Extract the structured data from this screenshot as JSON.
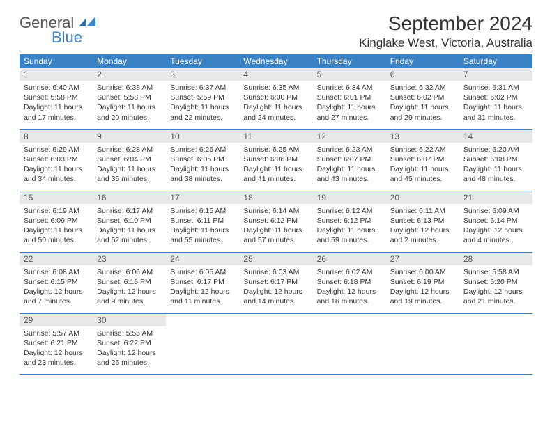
{
  "logo": {
    "text1": "General",
    "text2": "Blue",
    "color_general": "#555555",
    "color_blue": "#3b82c4"
  },
  "header": {
    "month_title": "September 2024",
    "location": "Kinglake West, Victoria, Australia"
  },
  "calendar": {
    "header_bg": "#3b82c4",
    "header_fg": "#ffffff",
    "daynum_bg": "#e8e8e8",
    "border_color": "#3b82c4",
    "body_fontsize": 10.5,
    "daynum_fontsize": 12,
    "header_fontsize": 12,
    "columns": [
      "Sunday",
      "Monday",
      "Tuesday",
      "Wednesday",
      "Thursday",
      "Friday",
      "Saturday"
    ],
    "weeks": [
      [
        {
          "n": "1",
          "sunrise": "Sunrise: 6:40 AM",
          "sunset": "Sunset: 5:58 PM",
          "day1": "Daylight: 11 hours",
          "day2": "and 17 minutes."
        },
        {
          "n": "2",
          "sunrise": "Sunrise: 6:38 AM",
          "sunset": "Sunset: 5:58 PM",
          "day1": "Daylight: 11 hours",
          "day2": "and 20 minutes."
        },
        {
          "n": "3",
          "sunrise": "Sunrise: 6:37 AM",
          "sunset": "Sunset: 5:59 PM",
          "day1": "Daylight: 11 hours",
          "day2": "and 22 minutes."
        },
        {
          "n": "4",
          "sunrise": "Sunrise: 6:35 AM",
          "sunset": "Sunset: 6:00 PM",
          "day1": "Daylight: 11 hours",
          "day2": "and 24 minutes."
        },
        {
          "n": "5",
          "sunrise": "Sunrise: 6:34 AM",
          "sunset": "Sunset: 6:01 PM",
          "day1": "Daylight: 11 hours",
          "day2": "and 27 minutes."
        },
        {
          "n": "6",
          "sunrise": "Sunrise: 6:32 AM",
          "sunset": "Sunset: 6:02 PM",
          "day1": "Daylight: 11 hours",
          "day2": "and 29 minutes."
        },
        {
          "n": "7",
          "sunrise": "Sunrise: 6:31 AM",
          "sunset": "Sunset: 6:02 PM",
          "day1": "Daylight: 11 hours",
          "day2": "and 31 minutes."
        }
      ],
      [
        {
          "n": "8",
          "sunrise": "Sunrise: 6:29 AM",
          "sunset": "Sunset: 6:03 PM",
          "day1": "Daylight: 11 hours",
          "day2": "and 34 minutes."
        },
        {
          "n": "9",
          "sunrise": "Sunrise: 6:28 AM",
          "sunset": "Sunset: 6:04 PM",
          "day1": "Daylight: 11 hours",
          "day2": "and 36 minutes."
        },
        {
          "n": "10",
          "sunrise": "Sunrise: 6:26 AM",
          "sunset": "Sunset: 6:05 PM",
          "day1": "Daylight: 11 hours",
          "day2": "and 38 minutes."
        },
        {
          "n": "11",
          "sunrise": "Sunrise: 6:25 AM",
          "sunset": "Sunset: 6:06 PM",
          "day1": "Daylight: 11 hours",
          "day2": "and 41 minutes."
        },
        {
          "n": "12",
          "sunrise": "Sunrise: 6:23 AM",
          "sunset": "Sunset: 6:07 PM",
          "day1": "Daylight: 11 hours",
          "day2": "and 43 minutes."
        },
        {
          "n": "13",
          "sunrise": "Sunrise: 6:22 AM",
          "sunset": "Sunset: 6:07 PM",
          "day1": "Daylight: 11 hours",
          "day2": "and 45 minutes."
        },
        {
          "n": "14",
          "sunrise": "Sunrise: 6:20 AM",
          "sunset": "Sunset: 6:08 PM",
          "day1": "Daylight: 11 hours",
          "day2": "and 48 minutes."
        }
      ],
      [
        {
          "n": "15",
          "sunrise": "Sunrise: 6:19 AM",
          "sunset": "Sunset: 6:09 PM",
          "day1": "Daylight: 11 hours",
          "day2": "and 50 minutes."
        },
        {
          "n": "16",
          "sunrise": "Sunrise: 6:17 AM",
          "sunset": "Sunset: 6:10 PM",
          "day1": "Daylight: 11 hours",
          "day2": "and 52 minutes."
        },
        {
          "n": "17",
          "sunrise": "Sunrise: 6:15 AM",
          "sunset": "Sunset: 6:11 PM",
          "day1": "Daylight: 11 hours",
          "day2": "and 55 minutes."
        },
        {
          "n": "18",
          "sunrise": "Sunrise: 6:14 AM",
          "sunset": "Sunset: 6:12 PM",
          "day1": "Daylight: 11 hours",
          "day2": "and 57 minutes."
        },
        {
          "n": "19",
          "sunrise": "Sunrise: 6:12 AM",
          "sunset": "Sunset: 6:12 PM",
          "day1": "Daylight: 11 hours",
          "day2": "and 59 minutes."
        },
        {
          "n": "20",
          "sunrise": "Sunrise: 6:11 AM",
          "sunset": "Sunset: 6:13 PM",
          "day1": "Daylight: 12 hours",
          "day2": "and 2 minutes."
        },
        {
          "n": "21",
          "sunrise": "Sunrise: 6:09 AM",
          "sunset": "Sunset: 6:14 PM",
          "day1": "Daylight: 12 hours",
          "day2": "and 4 minutes."
        }
      ],
      [
        {
          "n": "22",
          "sunrise": "Sunrise: 6:08 AM",
          "sunset": "Sunset: 6:15 PM",
          "day1": "Daylight: 12 hours",
          "day2": "and 7 minutes."
        },
        {
          "n": "23",
          "sunrise": "Sunrise: 6:06 AM",
          "sunset": "Sunset: 6:16 PM",
          "day1": "Daylight: 12 hours",
          "day2": "and 9 minutes."
        },
        {
          "n": "24",
          "sunrise": "Sunrise: 6:05 AM",
          "sunset": "Sunset: 6:17 PM",
          "day1": "Daylight: 12 hours",
          "day2": "and 11 minutes."
        },
        {
          "n": "25",
          "sunrise": "Sunrise: 6:03 AM",
          "sunset": "Sunset: 6:17 PM",
          "day1": "Daylight: 12 hours",
          "day2": "and 14 minutes."
        },
        {
          "n": "26",
          "sunrise": "Sunrise: 6:02 AM",
          "sunset": "Sunset: 6:18 PM",
          "day1": "Daylight: 12 hours",
          "day2": "and 16 minutes."
        },
        {
          "n": "27",
          "sunrise": "Sunrise: 6:00 AM",
          "sunset": "Sunset: 6:19 PM",
          "day1": "Daylight: 12 hours",
          "day2": "and 19 minutes."
        },
        {
          "n": "28",
          "sunrise": "Sunrise: 5:58 AM",
          "sunset": "Sunset: 6:20 PM",
          "day1": "Daylight: 12 hours",
          "day2": "and 21 minutes."
        }
      ],
      [
        {
          "n": "29",
          "sunrise": "Sunrise: 5:57 AM",
          "sunset": "Sunset: 6:21 PM",
          "day1": "Daylight: 12 hours",
          "day2": "and 23 minutes."
        },
        {
          "n": "30",
          "sunrise": "Sunrise: 5:55 AM",
          "sunset": "Sunset: 6:22 PM",
          "day1": "Daylight: 12 hours",
          "day2": "and 26 minutes."
        },
        null,
        null,
        null,
        null,
        null
      ]
    ]
  }
}
